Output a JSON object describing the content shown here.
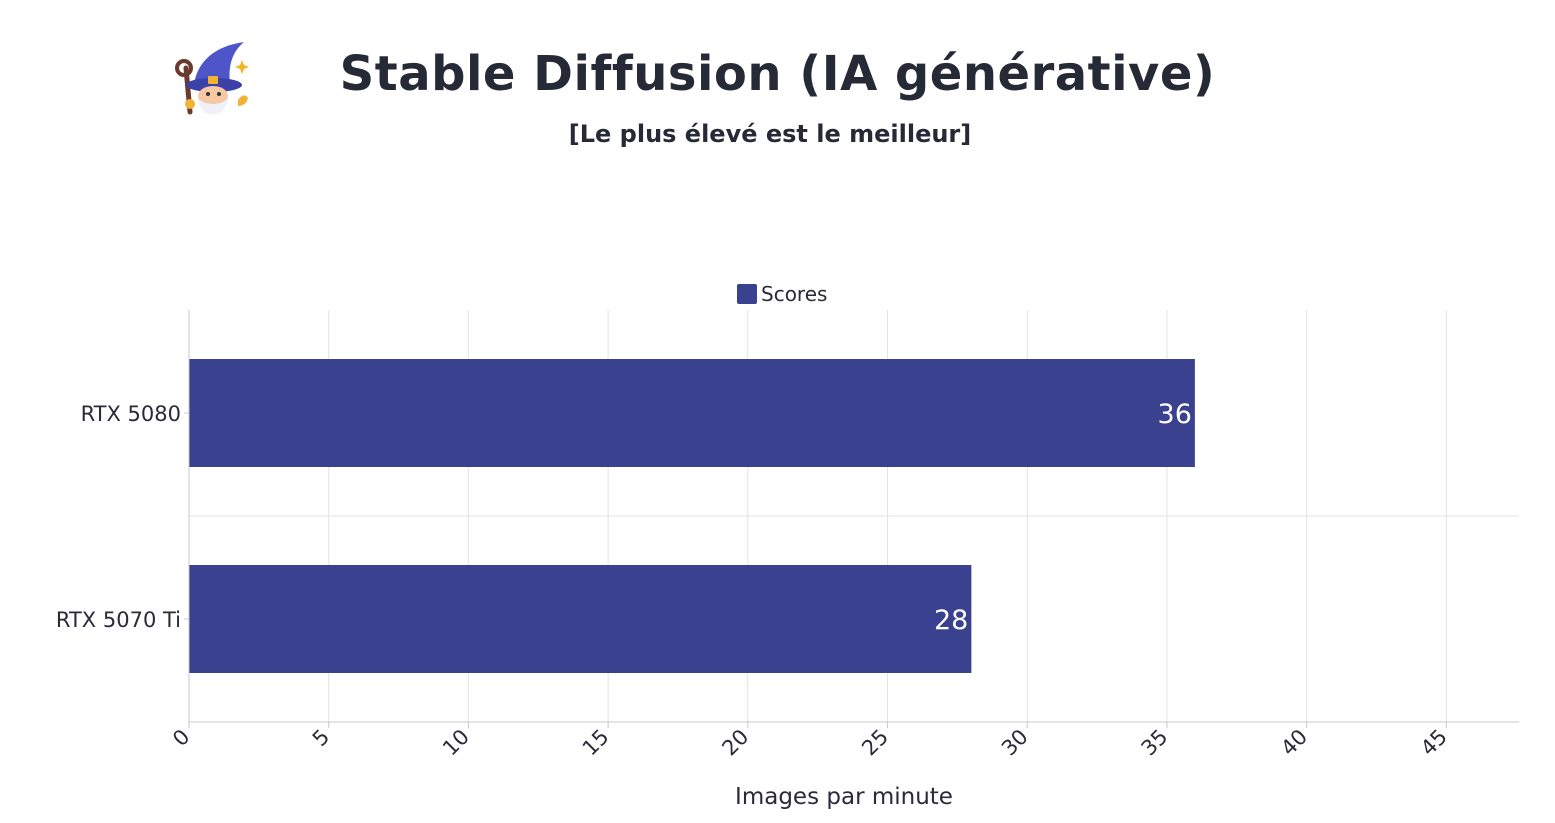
{
  "header": {
    "title": "Stable Diffusion (IA générative)",
    "subtitle": "[Le plus élevé est le meilleur]",
    "logo_icon": "wizard-icon"
  },
  "chart_data": {
    "type": "bar",
    "orientation": "horizontal",
    "title": "Stable Diffusion (IA générative)",
    "subtitle": "[Le plus élevé est le meilleur]",
    "categories": [
      "RTX 5080",
      "RTX 5070 Ti"
    ],
    "series": [
      {
        "name": "Scores",
        "values": [
          36,
          28
        ],
        "color": "#3a418f"
      }
    ],
    "xlabel": "Images par minute",
    "ylabel": "",
    "xlim": [
      0,
      47.6
    ],
    "x_ticks": [
      "0",
      "5",
      "10",
      "15",
      "20",
      "25",
      "30",
      "35",
      "40",
      "45"
    ],
    "tick_label_rotation": "-45",
    "legend": {
      "position": "top-center",
      "entries": [
        "Scores"
      ]
    },
    "grid": true,
    "data_labels": [
      "36",
      "28"
    ],
    "colors": {
      "bar": "#3a418f",
      "grid": "#e3e3e3",
      "axis": "#c8c8c8",
      "label": "#ffffff",
      "text": "#2b2b38"
    }
  }
}
